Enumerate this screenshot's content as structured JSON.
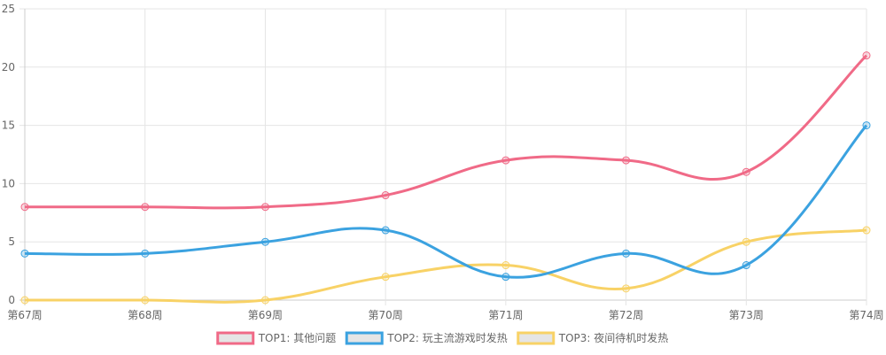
{
  "chart_data": {
    "type": "line",
    "categories": [
      "第67周",
      "第68周",
      "第69周",
      "第70周",
      "第71周",
      "第72周",
      "第73周",
      "第74周"
    ],
    "series": [
      {
        "name": "TOP1: 其他问题",
        "values": [
          8,
          8,
          8,
          9,
          12,
          12,
          11,
          21
        ],
        "color": "#f06a87"
      },
      {
        "name": "TOP2: 玩主流游戏时发热",
        "values": [
          4,
          4,
          5,
          6,
          2,
          4,
          3,
          15
        ],
        "color": "#3ba2e0"
      },
      {
        "name": "TOP3: 夜间待机时发热",
        "values": [
          0,
          0,
          0,
          2,
          3,
          1,
          5,
          6
        ],
        "color": "#f8d266"
      }
    ],
    "yticks": [
      "0",
      "5",
      "10",
      "15",
      "20",
      "25"
    ],
    "ylim": [
      0,
      25
    ],
    "grid": true,
    "legend_position": "bottom-center",
    "legend_box_fill": "#e5e5e5"
  }
}
